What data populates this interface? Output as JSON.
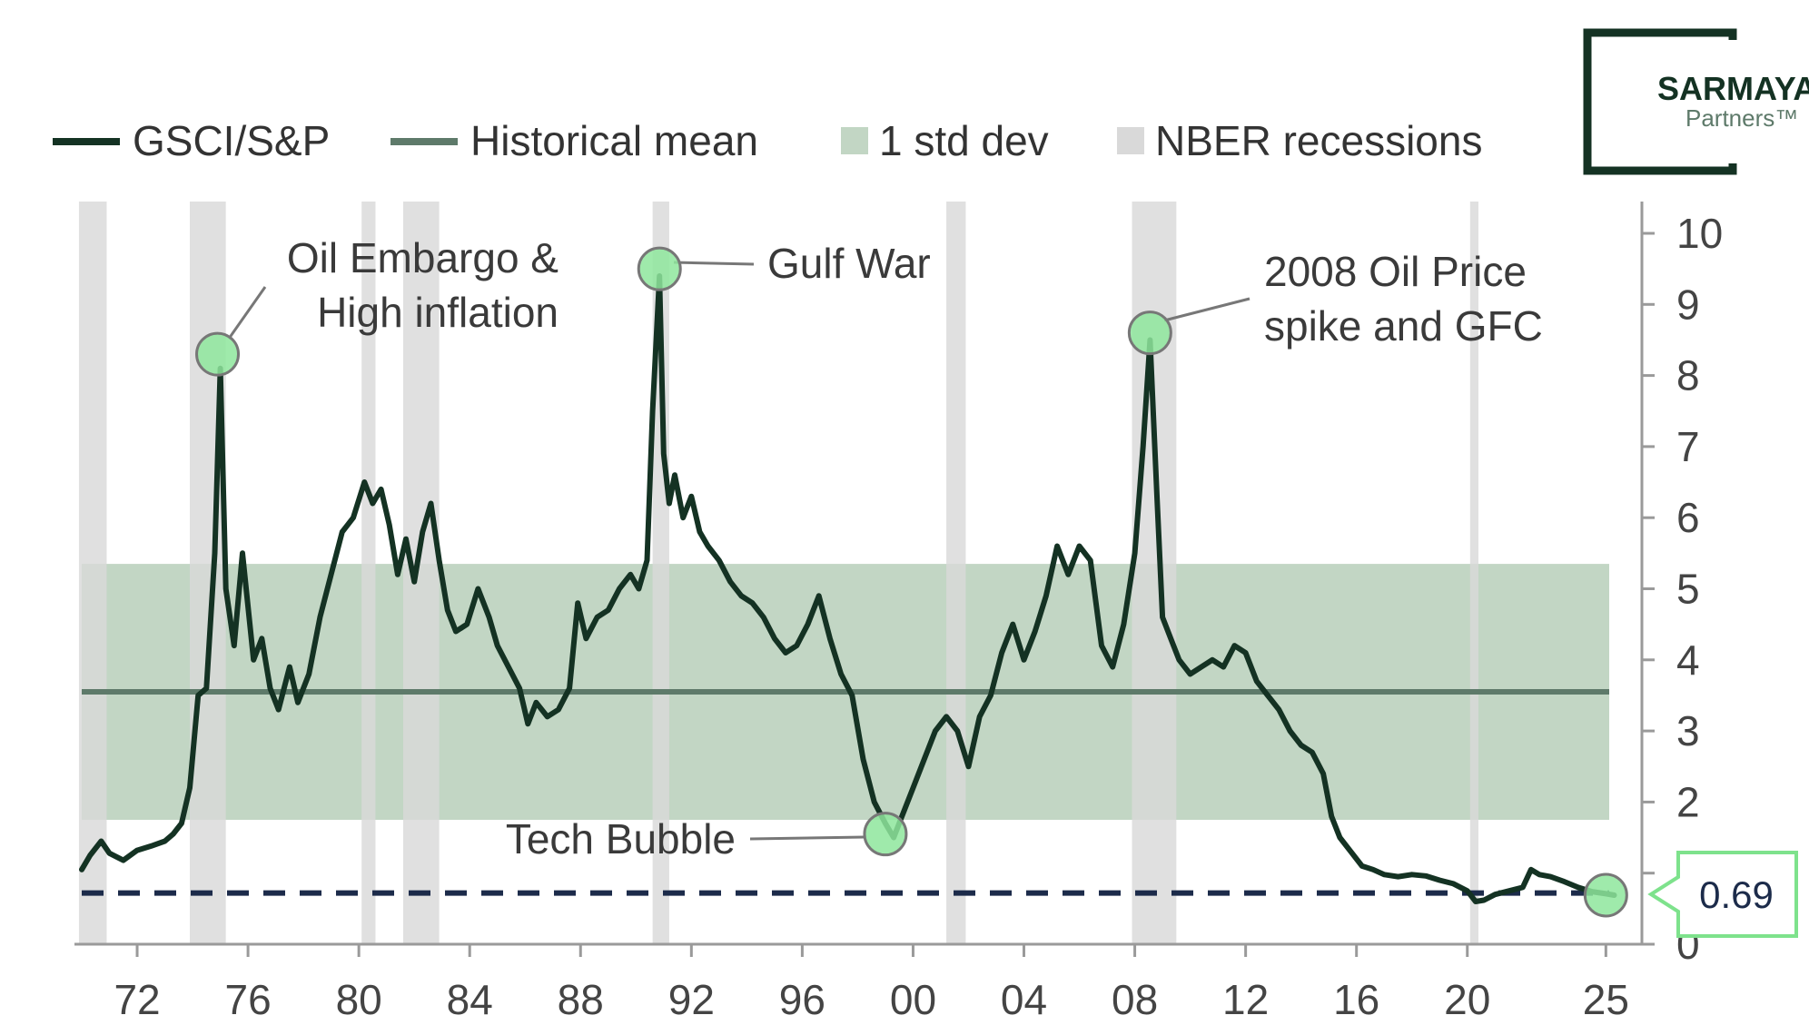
{
  "colors": {
    "series": "#143223",
    "mean": "#5e7a6a",
    "std_band": "#c2d6c4",
    "recession": "#d9d9d9",
    "highlight": "#8ee69c",
    "dashed": "#1c2b4a",
    "callout_border": "#7ee28c",
    "callout_text": "#1c2b4a",
    "brand": "#143223"
  },
  "logo": {
    "name": "SARMAYA",
    "sub": "Partners™"
  },
  "legend": [
    {
      "label": "GSCI/S&P",
      "kind": "line"
    },
    {
      "label": "Historical mean",
      "kind": "line"
    },
    {
      "label": "1 std dev",
      "kind": "box"
    },
    {
      "label": "NBER recessions",
      "kind": "box"
    }
  ],
  "callout": {
    "value": "0.69"
  },
  "chart_data": {
    "type": "line",
    "x_tick_labels": [
      "72",
      "76",
      "80",
      "84",
      "88",
      "92",
      "96",
      "00",
      "04",
      "08",
      "12",
      "16",
      "20",
      "25"
    ],
    "x_tick_years": [
      1972,
      1976,
      1980,
      1984,
      1988,
      1992,
      1996,
      2000,
      2004,
      2008,
      2012,
      2016,
      2020,
      2025
    ],
    "xlim": [
      1970,
      2026.3
    ],
    "ylim": [
      0,
      10
    ],
    "y_ticks": [
      0,
      1,
      2,
      3,
      4,
      5,
      6,
      7,
      8,
      9,
      10
    ],
    "y_axis_side": "right",
    "series": [
      {
        "name": "GSCI/S&P",
        "x": [
          1970.0,
          1970.3,
          1970.7,
          1971.0,
          1971.5,
          1972.0,
          1972.5,
          1973.0,
          1973.3,
          1973.6,
          1973.9,
          1974.2,
          1974.5,
          1974.8,
          1975.0,
          1975.2,
          1975.5,
          1975.8,
          1976.2,
          1976.5,
          1976.8,
          1977.1,
          1977.5,
          1977.8,
          1978.2,
          1978.6,
          1979.0,
          1979.4,
          1979.8,
          1980.2,
          1980.5,
          1980.8,
          1981.1,
          1981.4,
          1981.7,
          1982.0,
          1982.3,
          1982.6,
          1982.9,
          1983.2,
          1983.5,
          1983.9,
          1984.3,
          1984.7,
          1985.0,
          1985.4,
          1985.8,
          1986.1,
          1986.4,
          1986.8,
          1987.2,
          1987.6,
          1987.9,
          1988.2,
          1988.6,
          1989.0,
          1989.4,
          1989.8,
          1990.1,
          1990.4,
          1990.6,
          1990.85,
          1991.0,
          1991.2,
          1991.4,
          1991.7,
          1992.0,
          1992.3,
          1992.6,
          1993.0,
          1993.4,
          1993.8,
          1994.2,
          1994.6,
          1995.0,
          1995.4,
          1995.8,
          1996.2,
          1996.6,
          1997.0,
          1997.4,
          1997.8,
          1998.2,
          1998.6,
          1999.0,
          1999.3,
          1999.6,
          2000.0,
          2000.4,
          2000.8,
          2001.2,
          2001.6,
          2002.0,
          2002.4,
          2002.8,
          2003.2,
          2003.6,
          2004.0,
          2004.4,
          2004.8,
          2005.2,
          2005.6,
          2006.0,
          2006.4,
          2006.8,
          2007.2,
          2007.6,
          2008.0,
          2008.3,
          2008.55,
          2008.8,
          2009.0,
          2009.3,
          2009.6,
          2010.0,
          2010.4,
          2010.8,
          2011.2,
          2011.6,
          2012.0,
          2012.4,
          2012.8,
          2013.2,
          2013.6,
          2014.0,
          2014.4,
          2014.8,
          2015.1,
          2015.4,
          2015.8,
          2016.2,
          2016.6,
          2017.0,
          2017.5,
          2018.0,
          2018.5,
          2019.0,
          2019.5,
          2020.0,
          2020.3,
          2020.6,
          2021.0,
          2021.5,
          2022.0,
          2022.3,
          2022.6,
          2023.0,
          2023.5,
          2024.0,
          2024.5,
          2025.0,
          2025.3
        ],
        "values": [
          1.05,
          1.25,
          1.45,
          1.28,
          1.18,
          1.32,
          1.38,
          1.45,
          1.55,
          1.7,
          2.2,
          3.5,
          3.6,
          5.5,
          8.1,
          5.0,
          4.2,
          5.5,
          4.0,
          4.3,
          3.6,
          3.3,
          3.9,
          3.4,
          3.8,
          4.6,
          5.2,
          5.8,
          6.0,
          6.5,
          6.2,
          6.4,
          5.9,
          5.2,
          5.7,
          5.1,
          5.8,
          6.2,
          5.4,
          4.7,
          4.4,
          4.5,
          5.0,
          4.6,
          4.2,
          3.9,
          3.6,
          3.1,
          3.4,
          3.2,
          3.3,
          3.6,
          4.8,
          4.3,
          4.6,
          4.7,
          5.0,
          5.2,
          5.0,
          5.4,
          7.5,
          9.4,
          6.9,
          6.2,
          6.6,
          6.0,
          6.3,
          5.8,
          5.6,
          5.4,
          5.1,
          4.9,
          4.8,
          4.6,
          4.3,
          4.1,
          4.2,
          4.5,
          4.9,
          4.3,
          3.8,
          3.5,
          2.6,
          2.0,
          1.7,
          1.5,
          1.8,
          2.2,
          2.6,
          3.0,
          3.2,
          3.0,
          2.5,
          3.2,
          3.5,
          4.1,
          4.5,
          4.0,
          4.4,
          4.9,
          5.6,
          5.2,
          5.6,
          5.4,
          4.2,
          3.9,
          4.5,
          5.5,
          7.0,
          8.5,
          6.3,
          4.6,
          4.3,
          4.0,
          3.8,
          3.9,
          4.0,
          3.9,
          4.2,
          4.1,
          3.7,
          3.5,
          3.3,
          3.0,
          2.8,
          2.7,
          2.4,
          1.8,
          1.5,
          1.3,
          1.1,
          1.05,
          0.98,
          0.95,
          0.98,
          0.96,
          0.9,
          0.85,
          0.75,
          0.6,
          0.62,
          0.7,
          0.75,
          0.8,
          1.05,
          0.98,
          0.95,
          0.88,
          0.8,
          0.74,
          0.71,
          0.69
        ]
      }
    ],
    "historical_mean": 3.55,
    "std_band": [
      1.75,
      5.35
    ],
    "current_value_line": 0.72,
    "recessions": [
      [
        1969.9,
        1970.9
      ],
      [
        1973.9,
        1975.2
      ],
      [
        1980.1,
        1980.6
      ],
      [
        1981.6,
        1982.9
      ],
      [
        1990.6,
        1991.2
      ],
      [
        2001.2,
        2001.9
      ],
      [
        2007.9,
        2009.5
      ],
      [
        2020.1,
        2020.4
      ]
    ],
    "annotations": [
      {
        "lines": [
          "Oil Embargo &",
          "High inflation"
        ],
        "x": 1974.9,
        "y": 8.3
      },
      {
        "lines": [
          "Gulf War"
        ],
        "x": 1990.85,
        "y": 9.5
      },
      {
        "lines": [
          "2008 Oil Price",
          "spike and GFC"
        ],
        "x": 2008.55,
        "y": 8.6
      },
      {
        "lines": [
          "Tech Bubble"
        ],
        "x": 1999.0,
        "y": 1.55
      },
      {
        "lines": [],
        "x": 2025.0,
        "y": 0.69
      }
    ]
  }
}
